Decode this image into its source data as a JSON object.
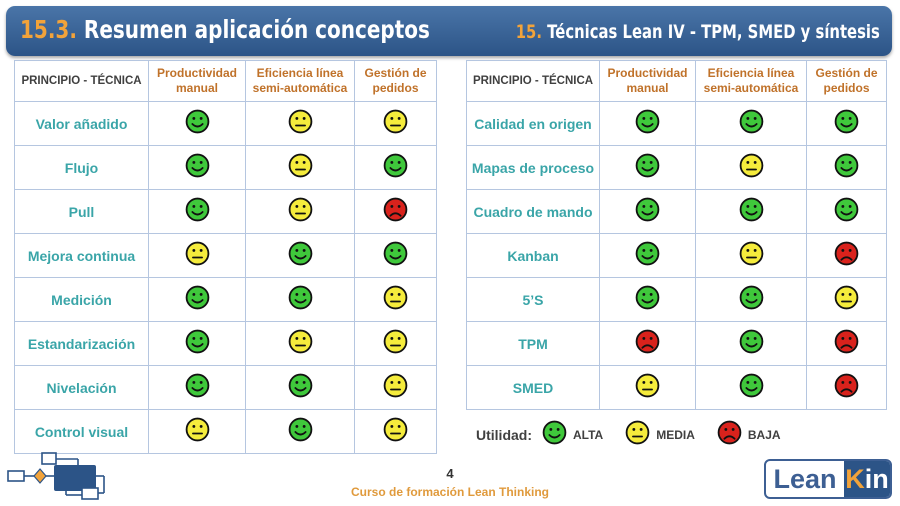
{
  "header": {
    "left_number": "15.3.",
    "left_title": "Resumen aplicación conceptos",
    "right_number": "15.",
    "right_title": "Técnicas Lean IV - TPM, SMED y síntesis"
  },
  "table_headers": {
    "col0": "PRINCIPIO - TÉCNICA",
    "col1_l1": "Productividad",
    "col1_l2": "manual",
    "col2_l1": "Eficiencia línea",
    "col2_l2": "semi-automática",
    "col3_l1": "Gestión de",
    "col3_l2": "pedidos"
  },
  "left_rows": [
    {
      "label": "Valor añadido",
      "ratings": [
        "alta",
        "media",
        "media"
      ]
    },
    {
      "label": "Flujo",
      "ratings": [
        "alta",
        "media",
        "alta"
      ]
    },
    {
      "label": "Pull",
      "ratings": [
        "alta",
        "media",
        "baja"
      ]
    },
    {
      "label": "Mejora continua",
      "ratings": [
        "media",
        "alta",
        "alta"
      ]
    },
    {
      "label": "Medición",
      "ratings": [
        "alta",
        "alta",
        "media"
      ]
    },
    {
      "label": "Estandarización",
      "ratings": [
        "alta",
        "media",
        "media"
      ]
    },
    {
      "label": "Nivelación",
      "ratings": [
        "alta",
        "alta",
        "media"
      ]
    },
    {
      "label": "Control visual",
      "ratings": [
        "media",
        "alta",
        "media"
      ]
    }
  ],
  "right_rows": [
    {
      "label": "Calidad en origen",
      "ratings": [
        "alta",
        "alta",
        "alta"
      ]
    },
    {
      "label": "Mapas de proceso",
      "ratings": [
        "alta",
        "media",
        "alta"
      ]
    },
    {
      "label": "Cuadro de mando",
      "ratings": [
        "alta",
        "alta",
        "alta"
      ]
    },
    {
      "label": "Kanban",
      "ratings": [
        "alta",
        "media",
        "baja"
      ]
    },
    {
      "label": "5’S",
      "ratings": [
        "alta",
        "alta",
        "media"
      ]
    },
    {
      "label": "TPM",
      "ratings": [
        "baja",
        "alta",
        "baja"
      ]
    },
    {
      "label": "SMED",
      "ratings": [
        "media",
        "alta",
        "baja"
      ]
    }
  ],
  "legend": {
    "title": "Utilidad:",
    "alta": "ALTA",
    "media": "MEDIA",
    "baja": "BAJA"
  },
  "colors": {
    "alta": "#3fc83b",
    "media": "#f5ec3c",
    "baja": "#d9221c"
  },
  "footer": {
    "page": "4",
    "course": "Curso de formación Lean Thinking"
  },
  "logo": {
    "part1": "Lean",
    "part2_k": "K",
    "part2_rest": "in"
  }
}
